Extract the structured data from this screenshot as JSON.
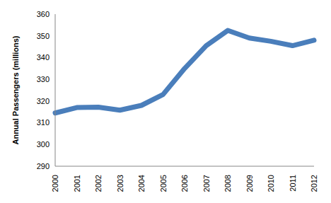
{
  "chart_data": {
    "type": "line",
    "y_label": "Annual Passengers (millions)",
    "categories": [
      "2000",
      "2001",
      "2002",
      "2003",
      "2004",
      "2005",
      "2006",
      "2007",
      "2008",
      "2009",
      "2010",
      "2011",
      "2012"
    ],
    "values": [
      314.5,
      317,
      317.2,
      315.8,
      318,
      323,
      335,
      345.5,
      352.5,
      349,
      347.5,
      345.5,
      348
    ],
    "color": "#4a7ebb",
    "ylim": [
      290,
      360
    ],
    "yticks": [
      290,
      300,
      310,
      320,
      330,
      340,
      350,
      360
    ],
    "grid": false
  }
}
